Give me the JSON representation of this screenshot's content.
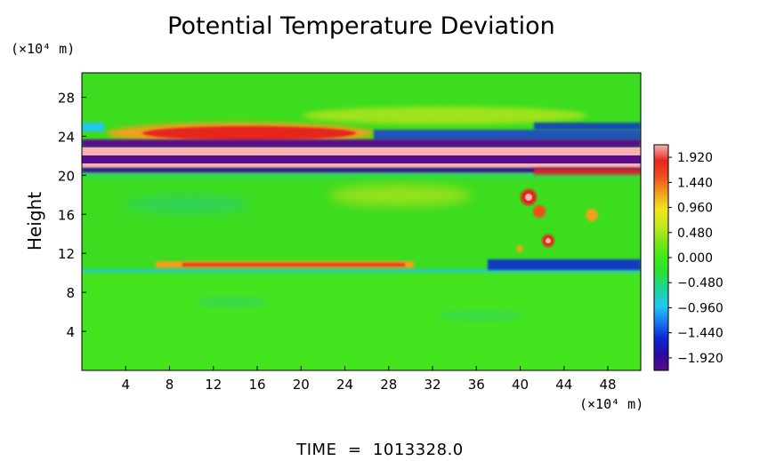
{
  "chart_data": {
    "type": "heatmap",
    "title": "Potential Temperature Deviation",
    "ylabel": "Height",
    "x_unit_label": "(×10⁴ m)",
    "y_unit_label": "(×10⁴ m)",
    "x_ticks": [
      4,
      8,
      12,
      16,
      20,
      24,
      28,
      32,
      36,
      40,
      44,
      48
    ],
    "y_ticks": [
      4,
      8,
      12,
      16,
      20,
      24,
      28
    ],
    "xlim": [
      0,
      51
    ],
    "ylim": [
      0,
      30.5
    ],
    "colorbar": {
      "ticks": [
        "1.920",
        "1.440",
        "0.960",
        "0.480",
        "0.000",
        "−0.480",
        "−0.960",
        "−1.440",
        "−1.920"
      ],
      "range": [
        -2.16,
        2.16
      ],
      "colors": [
        "#5a0a8c",
        "#2a0aa0",
        "#0a2ad2",
        "#1a78f0",
        "#22c8f0",
        "#1ed2a0",
        "#2ade3c",
        "#3ceb14",
        "#7be61a",
        "#c8e61e",
        "#f0e61e",
        "#f0a01e",
        "#f0501e",
        "#e6281e",
        "#f5b4b4"
      ]
    },
    "field_features": [
      {
        "name": "Upper positive lobe",
        "x_range": [
          8,
          25
        ],
        "y_center": 24.5,
        "value": 1.9
      },
      {
        "name": "Upper band 1 (negative)",
        "x_range": [
          0,
          51
        ],
        "y_center": 23.2,
        "value": -1.6
      },
      {
        "name": "Upper band 2 (positive)",
        "x_range": [
          0,
          51
        ],
        "y_center": 21.9,
        "value": 2.1
      },
      {
        "name": "Upper band 3 (negative)",
        "x_range": [
          0,
          51
        ],
        "y_center": 20.9,
        "value": -2.0
      },
      {
        "name": "Upper band 4 (positive)",
        "x_range": [
          0,
          51
        ],
        "y_center": 20.2,
        "value": 2.0
      },
      {
        "name": "Mid-level warm streak",
        "x_range": [
          8,
          30
        ],
        "y_center": 10.7,
        "value": 1.4
      },
      {
        "name": "Mid-level cool patch",
        "x_range": [
          37,
          51
        ],
        "y_center": 10.8,
        "value": -1.6
      },
      {
        "name": "Warm blobs near x=40",
        "x_range": [
          39,
          44
        ],
        "y_center": 15.5,
        "value": 2.0
      }
    ]
  },
  "footer": {
    "time_label": "TIME  =  1013328.0"
  }
}
